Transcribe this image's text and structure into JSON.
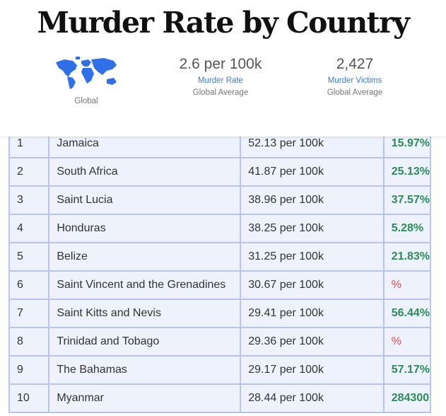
{
  "header": {
    "title": "Murder Rate by Country",
    "region": "Global",
    "stats": [
      {
        "value": "2.6 per 100k",
        "label": "Murder Rate",
        "sub": "Global Average"
      },
      {
        "value": "2,427",
        "label": "Murder Victims",
        "sub": "Global Average"
      }
    ]
  },
  "colors": {
    "accent": "#3b7bd4",
    "positive": "#2e8b57",
    "negative": "#d9534f",
    "row_bg": "#eef2fd",
    "border": "#b8c4f0"
  },
  "table": {
    "rows": [
      {
        "rank": "1",
        "country": "Jamaica",
        "rate": "52.13 per 100k",
        "change": "15.97%"
      },
      {
        "rank": "2",
        "country": "South Africa",
        "rate": "41.87 per 100k",
        "change": "25.13%"
      },
      {
        "rank": "3",
        "country": "Saint Lucia",
        "rate": "38.96 per 100k",
        "change": "37.57%"
      },
      {
        "rank": "4",
        "country": "Honduras",
        "rate": "38.25 per 100k",
        "change": "5.28%"
      },
      {
        "rank": "5",
        "country": "Belize",
        "rate": "31.25 per 100k",
        "change": "21.83%"
      },
      {
        "rank": "6",
        "country": "Saint Vincent and the Grenadines",
        "rate": "30.67 per 100k",
        "change": "%"
      },
      {
        "rank": "7",
        "country": "Saint Kitts and Nevis",
        "rate": "29.41 per 100k",
        "change": "56.44%"
      },
      {
        "rank": "8",
        "country": "Trinidad and Tobago",
        "rate": "29.36 per 100k",
        "change": "%"
      },
      {
        "rank": "9",
        "country": "The Bahamas",
        "rate": "29.17 per 100k",
        "change": "57.17%"
      },
      {
        "rank": "10",
        "country": "Myanmar",
        "rate": "28.44 per 100k",
        "change": "284300"
      }
    ]
  }
}
